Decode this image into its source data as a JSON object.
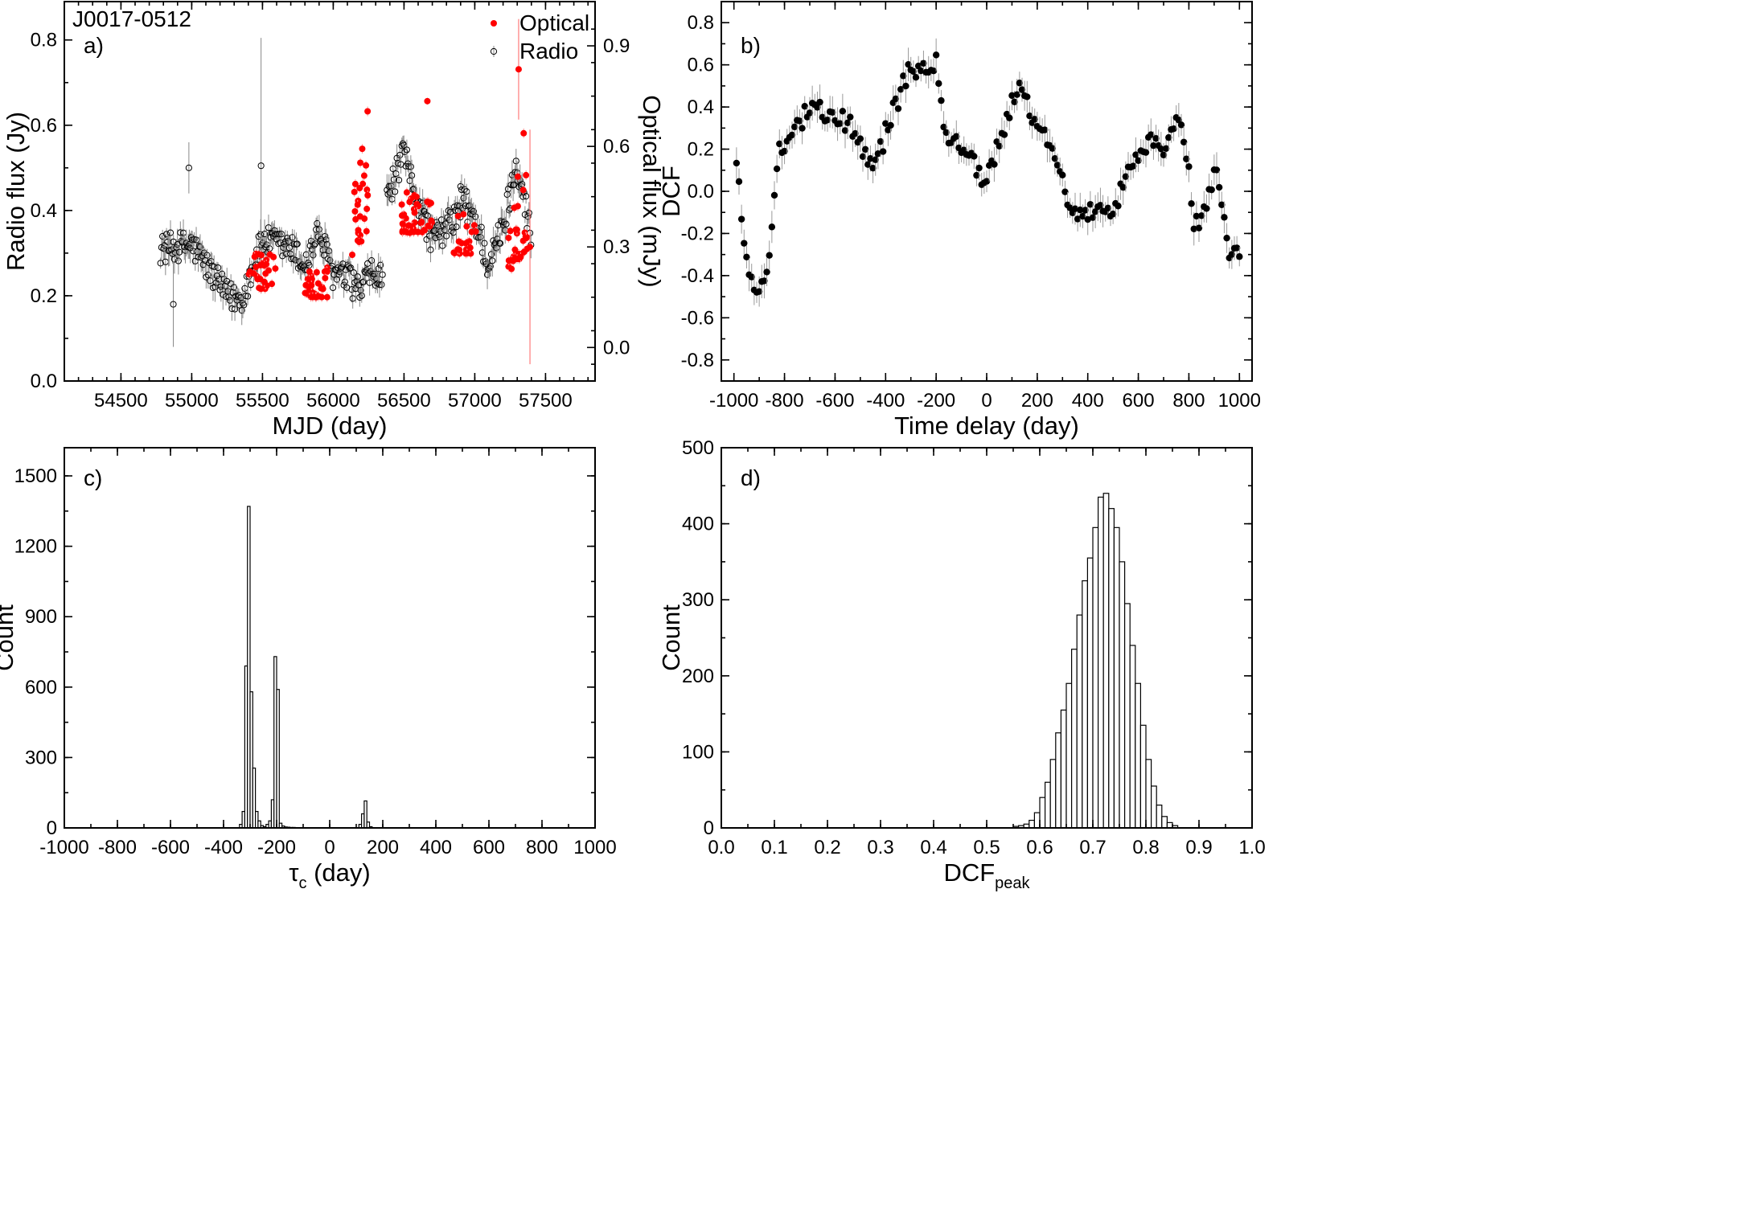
{
  "figure_title": "J0017-0512",
  "chart_data": [
    {
      "id": "a",
      "type": "scatter",
      "panel_label": "a)",
      "title": "J0017-0512",
      "xlabel": "MJD (day)",
      "ylabel": "Radio flux (Jy)",
      "y2label": "Optical flux (mJy)",
      "xlim": [
        54100,
        57850
      ],
      "ylim": [
        0,
        0.89
      ],
      "y2lim": [
        -0.1,
        1.032
      ],
      "xticks": [
        54500,
        55000,
        55500,
        56000,
        56500,
        57000,
        57500
      ],
      "yticks": [
        0.0,
        0.2,
        0.4,
        0.6,
        0.8
      ],
      "yticklabels": [
        "0.0",
        "0.2",
        "0.4",
        "0.6",
        "0.8"
      ],
      "y2ticks": [
        0.0,
        0.3,
        0.6,
        0.9
      ],
      "y2ticklabels": [
        "0.0",
        "0.3",
        "0.6",
        "0.9"
      ],
      "legend": [
        "Optical",
        "Radio"
      ],
      "legend_position": "top-right",
      "radio_segments": [
        {
          "x": [
            54780,
            55000,
            55250,
            55350,
            55500,
            55700,
            55800,
            55900,
            56000,
            56100,
            56200,
            56250,
            56350
          ],
          "y": [
            0.31,
            0.32,
            0.2,
            0.19,
            0.33,
            0.31,
            0.27,
            0.35,
            0.25,
            0.24,
            0.21,
            0.25,
            0.24
          ],
          "noise": 0.035
        },
        {
          "x": [
            56380,
            56500,
            56600,
            56700,
            56800,
            56900
          ],
          "y": [
            0.43,
            0.53,
            0.42,
            0.33,
            0.36,
            0.4
          ],
          "noise": 0.035
        },
        {
          "x": [
            56900,
            57000,
            57100,
            57200,
            57300,
            57400
          ],
          "y": [
            0.43,
            0.38,
            0.27,
            0.36,
            0.52,
            0.33
          ],
          "noise": 0.04
        }
      ],
      "radio_errors": {
        "y": 0.025
      },
      "radio_outliers": [
        {
          "x": 55490,
          "y": 0.505,
          "err": 0.3
        },
        {
          "x": 54870,
          "y": 0.18,
          "err": 0.1
        },
        {
          "x": 54980,
          "y": 0.5,
          "err": 0.06
        }
      ],
      "optical_clusters": [
        {
          "x": [
            55400,
            55600
          ],
          "y": [
            0.14,
            0.28
          ],
          "n": 28
        },
        {
          "x": [
            55800,
            55960
          ],
          "y": [
            0.12,
            0.24
          ],
          "n": 34
        },
        {
          "x": [
            56130,
            56250
          ],
          "y": [
            0.22,
            0.74
          ],
          "n": 26
        },
        {
          "x": [
            56480,
            56700
          ],
          "y": [
            0.3,
            0.47
          ],
          "n": 44
        },
        {
          "x": [
            56850,
            57030
          ],
          "y": [
            0.24,
            0.4
          ],
          "n": 22
        },
        {
          "x": [
            57230,
            57370
          ],
          "y": [
            0.16,
            0.7
          ],
          "n": 32
        }
      ],
      "optical_outliers": [
        {
          "x": 56665,
          "y": 0.735,
          "err": 0.01
        },
        {
          "x": 57310,
          "y": 0.83,
          "err": 0.15
        },
        {
          "x": 57390,
          "y": 0.3,
          "err": 0.35
        }
      ]
    },
    {
      "id": "b",
      "type": "scatter",
      "panel_label": "b)",
      "xlabel": "Time delay (day)",
      "ylabel": "DCF",
      "xlim": [
        -1050,
        1050
      ],
      "ylim": [
        -0.9,
        0.9
      ],
      "xticks": [
        -1000,
        -800,
        -600,
        -400,
        -200,
        0,
        200,
        400,
        600,
        800,
        1000
      ],
      "xticklabels": [
        "-1000",
        "-800",
        "-600",
        "-400",
        "-200",
        "0",
        "200",
        "400",
        "600",
        "800",
        "1000"
      ],
      "yticks": [
        -0.8,
        -0.6,
        -0.4,
        -0.2,
        0.0,
        0.2,
        0.4,
        0.6,
        0.8
      ],
      "yticklabels": [
        "-0.8",
        "-0.6",
        "-0.4",
        "-0.2",
        "0.0",
        "0.2",
        "0.4",
        "0.6",
        "0.8"
      ],
      "error": 0.065,
      "points": {
        "x": [
          -990,
          -950,
          -910,
          -860,
          -820,
          -760,
          -700,
          -600,
          -520,
          -450,
          -420,
          -380,
          -340,
          -300,
          -240,
          -200,
          -160,
          -100,
          -40,
          0,
          40,
          120,
          200,
          280,
          320,
          400,
          500,
          560,
          640,
          700,
          750,
          790,
          820,
          860,
          910,
          960,
          1000
        ],
        "y": [
          0.13,
          -0.34,
          -0.5,
          -0.32,
          0.2,
          0.3,
          0.38,
          0.38,
          0.28,
          0.1,
          0.2,
          0.35,
          0.47,
          0.6,
          0.55,
          0.62,
          0.25,
          0.2,
          0.1,
          0.04,
          0.2,
          0.5,
          0.32,
          0.17,
          -0.07,
          -0.1,
          -0.12,
          0.1,
          0.25,
          0.2,
          0.35,
          0.2,
          -0.15,
          -0.12,
          0.15,
          -0.3,
          -0.3
        ],
        "step": 10,
        "noise": 0.05
      }
    },
    {
      "id": "c",
      "type": "bar",
      "panel_label": "c)",
      "xlabel": "τ",
      "xlabel_sub": "c",
      "xlabel_suffix": " (day)",
      "ylabel": "Count",
      "xlim": [
        -1000,
        1000
      ],
      "ylim": [
        0,
        1620
      ],
      "xticks": [
        -1000,
        -800,
        -600,
        -400,
        -200,
        0,
        200,
        400,
        600,
        800,
        1000
      ],
      "xticklabels": [
        "-1000",
        "-800",
        "-600",
        "-400",
        "-200",
        "0",
        "200",
        "400",
        "600",
        "800",
        "1000"
      ],
      "yticks": [
        0,
        300,
        600,
        900,
        1200,
        1500
      ],
      "yticklabels": [
        "0",
        "300",
        "600",
        "900",
        "1200",
        "1500"
      ],
      "bin_width": 10,
      "bins": [
        -340,
        -330,
        -320,
        -310,
        -300,
        -290,
        -280,
        -270,
        -260,
        -250,
        -240,
        -230,
        -220,
        -210,
        -200,
        -190,
        -180,
        -170,
        -160,
        -150,
        -140,
        110,
        120,
        130,
        140,
        150
      ],
      "counts": [
        15,
        70,
        690,
        1370,
        580,
        255,
        70,
        30,
        10,
        5,
        15,
        30,
        120,
        730,
        590,
        20,
        8,
        4,
        3,
        2,
        2,
        15,
        60,
        115,
        25,
        5
      ]
    },
    {
      "id": "d",
      "type": "bar",
      "panel_label": "d)",
      "xlabel": "DCF",
      "xlabel_sub": "peak",
      "xlabel_suffix": "",
      "ylabel": "Count",
      "xlim": [
        0.0,
        1.0
      ],
      "ylim": [
        0,
        500
      ],
      "xticks": [
        0.0,
        0.1,
        0.2,
        0.3,
        0.4,
        0.5,
        0.6,
        0.7,
        0.8,
        0.9,
        1.0
      ],
      "xticklabels": [
        "0.0",
        "0.1",
        "0.2",
        "0.3",
        "0.4",
        "0.5",
        "0.6",
        "0.7",
        "0.8",
        "0.9",
        "1.0"
      ],
      "yticks": [
        0,
        100,
        200,
        300,
        400,
        500
      ],
      "yticklabels": [
        "0",
        "100",
        "200",
        "300",
        "400",
        "500"
      ],
      "bin_width": 0.01,
      "bins": [
        0.55,
        0.56,
        0.57,
        0.58,
        0.59,
        0.6,
        0.61,
        0.62,
        0.63,
        0.64,
        0.65,
        0.66,
        0.67,
        0.68,
        0.69,
        0.7,
        0.71,
        0.72,
        0.73,
        0.74,
        0.75,
        0.76,
        0.77,
        0.78,
        0.79,
        0.8,
        0.81,
        0.82,
        0.83,
        0.84,
        0.85
      ],
      "counts": [
        2,
        3,
        5,
        10,
        20,
        40,
        60,
        90,
        125,
        155,
        190,
        235,
        280,
        325,
        355,
        395,
        435,
        440,
        420,
        395,
        350,
        295,
        240,
        190,
        135,
        90,
        55,
        30,
        15,
        7,
        3
      ]
    }
  ]
}
